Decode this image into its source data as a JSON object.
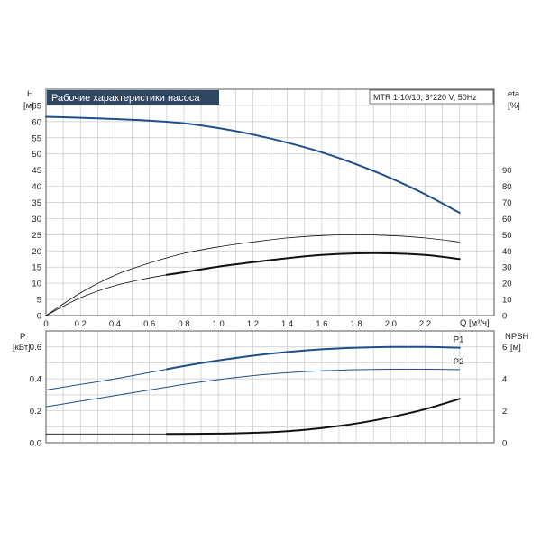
{
  "colors": {
    "title_bg": "#2f4862",
    "title_fg": "#ffffff",
    "blue": "#1f4e8c",
    "black": "#111111",
    "grid": "#c8c8c8",
    "frame": "#555555"
  },
  "chart_data": {
    "type": "line",
    "title": "Рабочие характеристики насоса",
    "model_label": "MTR 1-10/10, 3*220 V, 50Hz",
    "x_label": "Q [м³/ч]",
    "x_ticks": [
      "0",
      "0.2",
      "0.4",
      "0.6",
      "0.8",
      "1.0",
      "1.2",
      "1.4",
      "1.6",
      "1.8",
      "2.0",
      "2.2"
    ],
    "xlim": [
      0,
      2.6
    ],
    "upper": {
      "left_axis": {
        "label_top": "H",
        "label_unit": "[м]",
        "ylim": [
          0,
          70
        ],
        "ticks": [
          "0",
          "5",
          "10",
          "15",
          "20",
          "25",
          "30",
          "35",
          "40",
          "45",
          "50",
          "55",
          "60",
          "65"
        ]
      },
      "right_axis": {
        "label_top": "eta",
        "label_unit": "[%]",
        "ylim": [
          0,
          140
        ],
        "ticks": [
          "0",
          "10",
          "20",
          "30",
          "40",
          "50",
          "60",
          "70",
          "80",
          "90"
        ]
      },
      "series": [
        {
          "id": "head",
          "axis": "left",
          "color": "blue",
          "width": 2.0,
          "x": [
            0,
            0.2,
            0.4,
            0.6,
            0.8,
            1.0,
            1.2,
            1.4,
            1.6,
            1.8,
            2.0,
            2.2,
            2.4
          ],
          "y": [
            61.5,
            61.2,
            60.8,
            60.3,
            59.5,
            58.0,
            56.0,
            53.5,
            50.5,
            46.8,
            42.5,
            37.5,
            31.8
          ]
        },
        {
          "id": "eta_thin",
          "axis": "right",
          "color": "black",
          "width": 0.8,
          "x": [
            0,
            0.2,
            0.4,
            0.6,
            0.8,
            1.0,
            1.2,
            1.4,
            1.6,
            1.8,
            2.0,
            2.2,
            2.4
          ],
          "y": [
            0,
            14,
            25,
            32.5,
            38.5,
            42.5,
            45.5,
            48,
            49.5,
            50,
            49.5,
            48,
            45.5
          ]
        },
        {
          "id": "eta_pump",
          "axis": "right",
          "color": "black",
          "width": 0.8,
          "x": [
            0,
            0.2,
            0.4,
            0.6,
            0.7
          ],
          "y": [
            0,
            11,
            18.5,
            23.3,
            25.2
          ]
        },
        {
          "id": "eta_bold",
          "axis": "right",
          "color": "black",
          "width": 2.0,
          "x": [
            0.7,
            0.8,
            1.0,
            1.2,
            1.4,
            1.6,
            1.8,
            2.0,
            2.2,
            2.4
          ],
          "y": [
            25.2,
            26.8,
            30.3,
            33.0,
            35.5,
            37.5,
            38.5,
            38.5,
            37.5,
            35.0
          ]
        }
      ]
    },
    "lower": {
      "left_axis": {
        "label_top": "P",
        "label_unit": "[кВт]",
        "ylim": [
          0,
          0.7
        ],
        "ticks": [
          "0.0",
          "0.2",
          "0.4",
          "0.6"
        ]
      },
      "right_axis": {
        "label_top": "NPSH",
        "label_unit": "[м]",
        "ylim": [
          0,
          7
        ],
        "ticks": [
          "0",
          "2",
          "4",
          "6"
        ]
      },
      "series": [
        {
          "id": "p1_thin",
          "axis": "left",
          "color": "blue",
          "width": 1.0,
          "x": [
            0,
            0.2,
            0.4,
            0.6,
            0.7
          ],
          "y": [
            0.33,
            0.365,
            0.4,
            0.44,
            0.46
          ]
        },
        {
          "id": "p1_bold",
          "name": "P1",
          "axis": "left",
          "color": "blue",
          "width": 2.0,
          "x": [
            0.7,
            0.8,
            1.0,
            1.2,
            1.4,
            1.6,
            1.8,
            2.0,
            2.2,
            2.4
          ],
          "y": [
            0.46,
            0.48,
            0.515,
            0.545,
            0.568,
            0.585,
            0.595,
            0.6,
            0.6,
            0.595
          ]
        },
        {
          "id": "p2",
          "name": "P2",
          "axis": "left",
          "color": "blue",
          "width": 1.0,
          "x": [
            0,
            0.2,
            0.4,
            0.6,
            0.8,
            1.0,
            1.2,
            1.4,
            1.6,
            1.8,
            2.0,
            2.2,
            2.4
          ],
          "y": [
            0.225,
            0.26,
            0.295,
            0.33,
            0.365,
            0.395,
            0.42,
            0.438,
            0.45,
            0.457,
            0.46,
            0.46,
            0.458
          ]
        },
        {
          "id": "npsh_thin",
          "axis": "right",
          "color": "black",
          "width": 0.8,
          "x": [
            0,
            0.7
          ],
          "y": [
            0.55,
            0.55
          ]
        },
        {
          "id": "npsh_bold",
          "axis": "right",
          "color": "black",
          "width": 2.0,
          "x": [
            0.7,
            1.0,
            1.2,
            1.4,
            1.6,
            1.8,
            2.0,
            2.2,
            2.4
          ],
          "y": [
            0.55,
            0.57,
            0.62,
            0.72,
            0.92,
            1.2,
            1.6,
            2.1,
            2.75
          ]
        }
      ]
    }
  }
}
